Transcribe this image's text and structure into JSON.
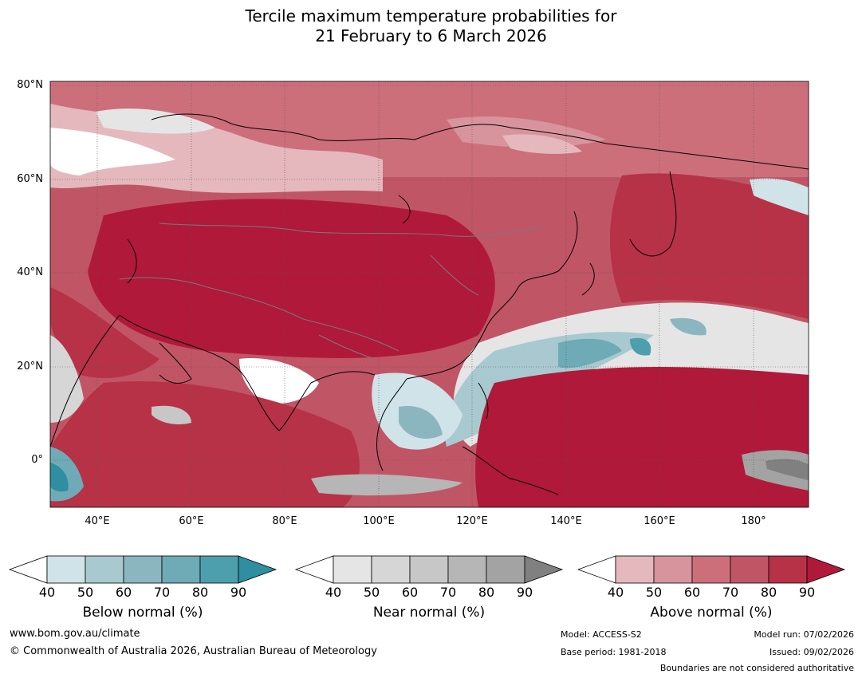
{
  "title_line1": "Tercile maximum temperature probabilities for",
  "title_line2": "21 February to 6 March 2026",
  "map": {
    "lat_labels": [
      "80°N",
      "60°N",
      "40°N",
      "20°N",
      "0°"
    ],
    "lon_labels": [
      "40°E",
      "60°E",
      "80°E",
      "100°E",
      "120°E",
      "140°E",
      "160°E",
      "180°"
    ],
    "region": "Asia",
    "gridlines": true
  },
  "colorbars": [
    {
      "title": "Below normal (%)",
      "ticks": [
        "40",
        "50",
        "60",
        "70",
        "80",
        "90"
      ],
      "colors": [
        "#ffffff",
        "#cfe3e8",
        "#a8c9cf",
        "#8cb6bf",
        "#6eabb6",
        "#4e9fae",
        "#2f8ea0"
      ]
    },
    {
      "title": "Near normal (%)",
      "ticks": [
        "40",
        "50",
        "60",
        "70",
        "80",
        "90"
      ],
      "colors": [
        "#ffffff",
        "#e5e5e5",
        "#d6d6d6",
        "#c7c7c7",
        "#b6b6b6",
        "#a3a3a3",
        "#808080"
      ]
    },
    {
      "title": "Above normal (%)",
      "ticks": [
        "40",
        "50",
        "60",
        "70",
        "80",
        "90"
      ],
      "colors": [
        "#ffffff",
        "#e4b8bd",
        "#d8949c",
        "#cc6f7b",
        "#c05566",
        "#b73247",
        "#b0193a"
      ]
    }
  ],
  "footer": {
    "website": "www.bom.gov.au/climate",
    "copyright": "© Commonwealth of Australia 2026, Australian Bureau of Meteorology",
    "model": "Model: ACCESS-S2",
    "base_period": "Base period: 1981-2018",
    "model_run": "Model run: 07/02/2026",
    "issued": "Issued: 09/02/2026",
    "disclaimer": "Boundaries are not considered authoritative"
  }
}
